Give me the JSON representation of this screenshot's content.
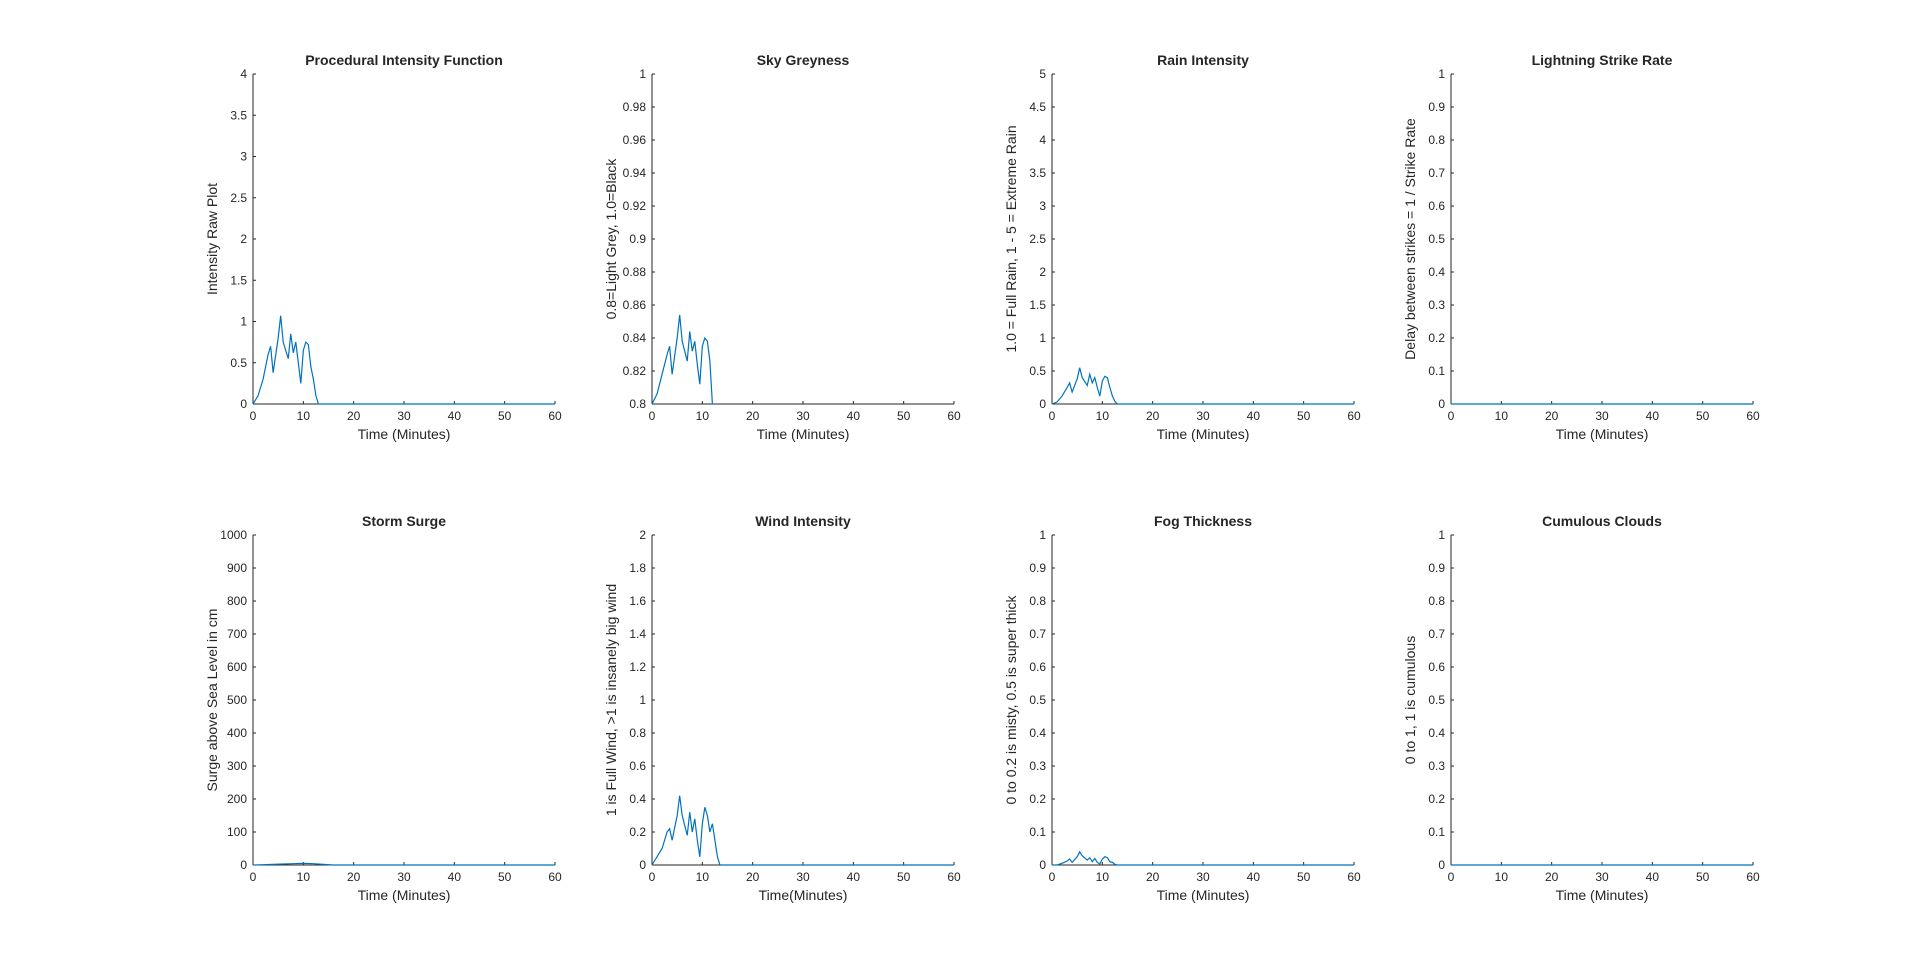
{
  "chart_data": [
    {
      "type": "line",
      "title": "Procedural Intensity Function",
      "xlabel": "Time (Minutes)",
      "ylabel": "Intensity Raw Plot",
      "xlim": [
        0,
        60
      ],
      "ylim": [
        0,
        4
      ],
      "xticks": [
        0,
        10,
        20,
        30,
        40,
        50,
        60
      ],
      "yticks": [
        0,
        0.5,
        1,
        1.5,
        2,
        2.5,
        3,
        3.5,
        4
      ],
      "grid": false,
      "series": [
        {
          "color": "#0072bd",
          "x": [
            0,
            1,
            2,
            3,
            3.5,
            4,
            5,
            5.5,
            6,
            7,
            7.5,
            8,
            8.5,
            9,
            9.5,
            10,
            10.5,
            11,
            11.5,
            12,
            12.5,
            13,
            13.5,
            60
          ],
          "y": [
            0,
            0.1,
            0.3,
            0.6,
            0.7,
            0.38,
            0.8,
            1.07,
            0.75,
            0.55,
            0.85,
            0.62,
            0.75,
            0.5,
            0.25,
            0.65,
            0.75,
            0.72,
            0.45,
            0.3,
            0.1,
            0,
            0,
            0
          ]
        }
      ]
    },
    {
      "type": "line",
      "title": "Sky Greyness",
      "xlabel": "Time (Minutes)",
      "ylabel": "0.8=Light Grey, 1.0=Black",
      "xlim": [
        0,
        60
      ],
      "ylim": [
        0.8,
        1
      ],
      "xticks": [
        0,
        10,
        20,
        30,
        40,
        50,
        60
      ],
      "yticks": [
        0.8,
        0.82,
        0.84,
        0.86,
        0.88,
        0.9,
        0.92,
        0.94,
        0.96,
        0.98,
        1
      ],
      "grid": false,
      "series": [
        {
          "color": "#0072bd",
          "x": [
            0,
            1,
            2,
            3,
            3.5,
            4,
            5,
            5.5,
            6,
            7,
            7.5,
            8,
            8.5,
            9,
            9.5,
            10,
            10.5,
            11,
            11.5,
            12,
            12.5
          ],
          "y": [
            0.8,
            0.806,
            0.818,
            0.83,
            0.835,
            0.818,
            0.84,
            0.854,
            0.838,
            0.826,
            0.844,
            0.832,
            0.838,
            0.824,
            0.812,
            0.835,
            0.84,
            0.838,
            0.826,
            0.8,
            0.8
          ]
        }
      ]
    },
    {
      "type": "line",
      "title": "Rain Intensity",
      "xlabel": "Time (Minutes)",
      "ylabel": "1.0 = Full Rain, 1 - 5 = Extreme Rain",
      "xlim": [
        0,
        60
      ],
      "ylim": [
        0,
        5
      ],
      "xticks": [
        0,
        10,
        20,
        30,
        40,
        50,
        60
      ],
      "yticks": [
        0,
        0.5,
        1,
        1.5,
        2,
        2.5,
        3,
        3.5,
        4,
        4.5,
        5
      ],
      "grid": false,
      "series": [
        {
          "color": "#0072bd",
          "x": [
            0,
            1,
            2,
            3,
            3.5,
            4,
            5,
            5.5,
            6,
            7,
            7.5,
            8,
            8.5,
            9,
            9.5,
            10,
            10.5,
            11,
            11.5,
            12,
            12.5,
            13,
            13.5,
            60
          ],
          "y": [
            0,
            0.03,
            0.12,
            0.25,
            0.32,
            0.18,
            0.38,
            0.55,
            0.4,
            0.28,
            0.45,
            0.32,
            0.4,
            0.25,
            0.12,
            0.35,
            0.42,
            0.4,
            0.25,
            0.12,
            0.04,
            0,
            0,
            0
          ]
        }
      ]
    },
    {
      "type": "line",
      "title": "Lightning Strike Rate",
      "xlabel": "Time (Minutes)",
      "ylabel": "Delay between strikes = 1 / Strike Rate",
      "xlim": [
        0,
        60
      ],
      "ylim": [
        0,
        1
      ],
      "xticks": [
        0,
        10,
        20,
        30,
        40,
        50,
        60
      ],
      "yticks": [
        0,
        0.1,
        0.2,
        0.3,
        0.4,
        0.5,
        0.6,
        0.7,
        0.8,
        0.9,
        1
      ],
      "grid": false,
      "series": [
        {
          "color": "#0072bd",
          "x": [
            0,
            60
          ],
          "y": [
            0,
            0
          ]
        }
      ]
    },
    {
      "type": "line",
      "title": "Storm Surge",
      "xlabel": "Time (Minutes)",
      "ylabel": "Surge above Sea Level in cm",
      "xlim": [
        0,
        60
      ],
      "ylim": [
        0,
        1000
      ],
      "xticks": [
        0,
        10,
        20,
        30,
        40,
        50,
        60
      ],
      "yticks": [
        0,
        100,
        200,
        300,
        400,
        500,
        600,
        700,
        800,
        900,
        1000
      ],
      "grid": false,
      "series": [
        {
          "color": "#0072bd",
          "x": [
            0,
            2,
            4,
            6,
            8,
            10,
            12,
            14,
            16,
            60
          ],
          "y": [
            0,
            1,
            2,
            3,
            4,
            5,
            4,
            2,
            0,
            0
          ]
        }
      ]
    },
    {
      "type": "line",
      "title": "Wind Intensity",
      "xlabel": "Time(Minutes)",
      "ylabel": "1 is Full Wind, >1 is insanely big wind",
      "xlim": [
        0,
        60
      ],
      "ylim": [
        0,
        2
      ],
      "xticks": [
        0,
        10,
        20,
        30,
        40,
        50,
        60
      ],
      "yticks": [
        0,
        0.2,
        0.4,
        0.6,
        0.8,
        1,
        1.2,
        1.4,
        1.6,
        1.8,
        2
      ],
      "grid": false,
      "series": [
        {
          "color": "#0072bd",
          "x": [
            0,
            1,
            2,
            3,
            3.5,
            4,
            5,
            5.5,
            6,
            7,
            7.5,
            8,
            8.5,
            9,
            9.5,
            10,
            10.5,
            11,
            11.5,
            12,
            12.5,
            13,
            13.5,
            14,
            60
          ],
          "y": [
            0,
            0.05,
            0.1,
            0.2,
            0.22,
            0.15,
            0.3,
            0.42,
            0.3,
            0.18,
            0.32,
            0.2,
            0.28,
            0.15,
            0.05,
            0.25,
            0.35,
            0.3,
            0.2,
            0.25,
            0.15,
            0.05,
            0,
            0,
            0
          ]
        }
      ]
    },
    {
      "type": "line",
      "title": "Fog Thickness",
      "xlabel": "Time (Minutes)",
      "ylabel": "0 to 0.2 is misty, 0.5 is super thick",
      "xlim": [
        0,
        60
      ],
      "ylim": [
        0,
        1
      ],
      "xticks": [
        0,
        10,
        20,
        30,
        40,
        50,
        60
      ],
      "yticks": [
        0,
        0.1,
        0.2,
        0.3,
        0.4,
        0.5,
        0.6,
        0.7,
        0.8,
        0.9,
        1
      ],
      "grid": false,
      "series": [
        {
          "color": "#0072bd",
          "x": [
            0,
            1,
            2,
            3,
            3.5,
            4,
            5,
            5.5,
            6,
            7,
            7.5,
            8,
            8.5,
            9,
            9.5,
            10,
            10.5,
            11,
            11.5,
            12,
            12.5,
            13,
            60
          ],
          "y": [
            0,
            0,
            0.005,
            0.012,
            0.018,
            0.008,
            0.025,
            0.04,
            0.028,
            0.015,
            0.022,
            0.01,
            0.02,
            0.008,
            0.003,
            0.018,
            0.025,
            0.022,
            0.01,
            0.008,
            0.002,
            0,
            0
          ]
        }
      ]
    },
    {
      "type": "line",
      "title": "Cumulous Clouds",
      "xlabel": "Time (Minutes)",
      "ylabel": "0 to 1, 1 is cumulous",
      "xlim": [
        0,
        60
      ],
      "ylim": [
        0,
        1
      ],
      "xticks": [
        0,
        10,
        20,
        30,
        40,
        50,
        60
      ],
      "yticks": [
        0,
        0.1,
        0.2,
        0.3,
        0.4,
        0.5,
        0.6,
        0.7,
        0.8,
        0.9,
        1
      ],
      "grid": false,
      "series": [
        {
          "color": "#0072bd",
          "x": [
            0,
            60
          ],
          "y": [
            0,
            0
          ]
        }
      ]
    }
  ]
}
